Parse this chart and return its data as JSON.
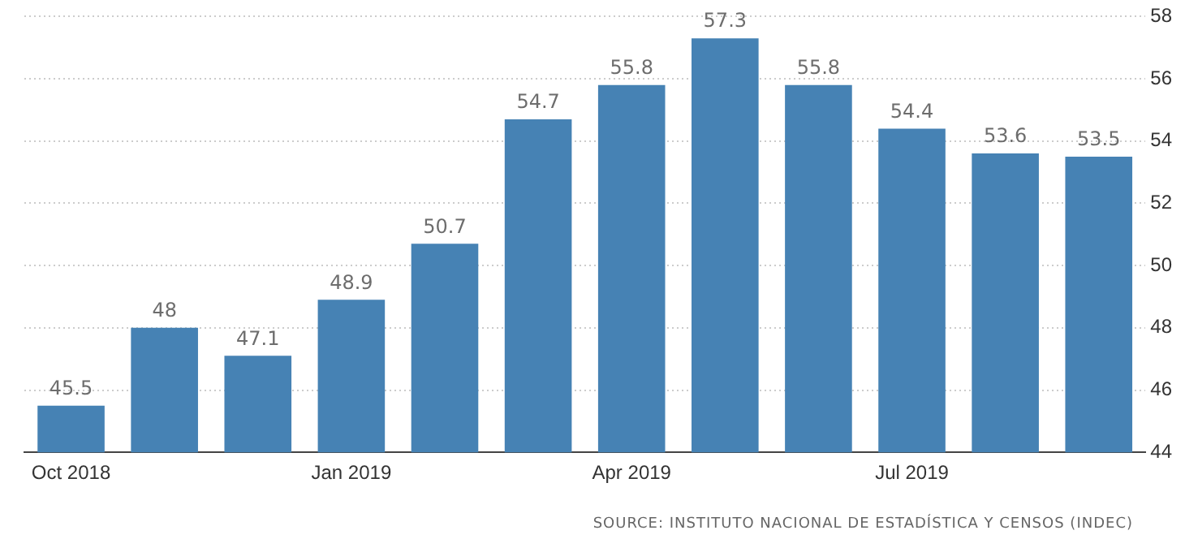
{
  "chart_data": {
    "type": "bar",
    "categories": [
      "Oct 2018",
      null,
      null,
      "Jan 2019",
      null,
      null,
      "Apr 2019",
      null,
      null,
      "Jul 2019",
      null,
      null
    ],
    "values": [
      45.5,
      48,
      47.1,
      48.9,
      50.7,
      54.7,
      55.8,
      57.3,
      55.8,
      54.4,
      53.6,
      53.5
    ],
    "color": "#4682b4",
    "ylim": [
      44,
      58
    ],
    "yticks": [
      44,
      46,
      48,
      50,
      52,
      54,
      56,
      58
    ],
    "grid": "y",
    "data_labels": true,
    "annotations": [
      "SOURCE: INSTITUTO NACIONAL DE ESTADÍSTICA Y CENSOS (INDEC)"
    ]
  }
}
